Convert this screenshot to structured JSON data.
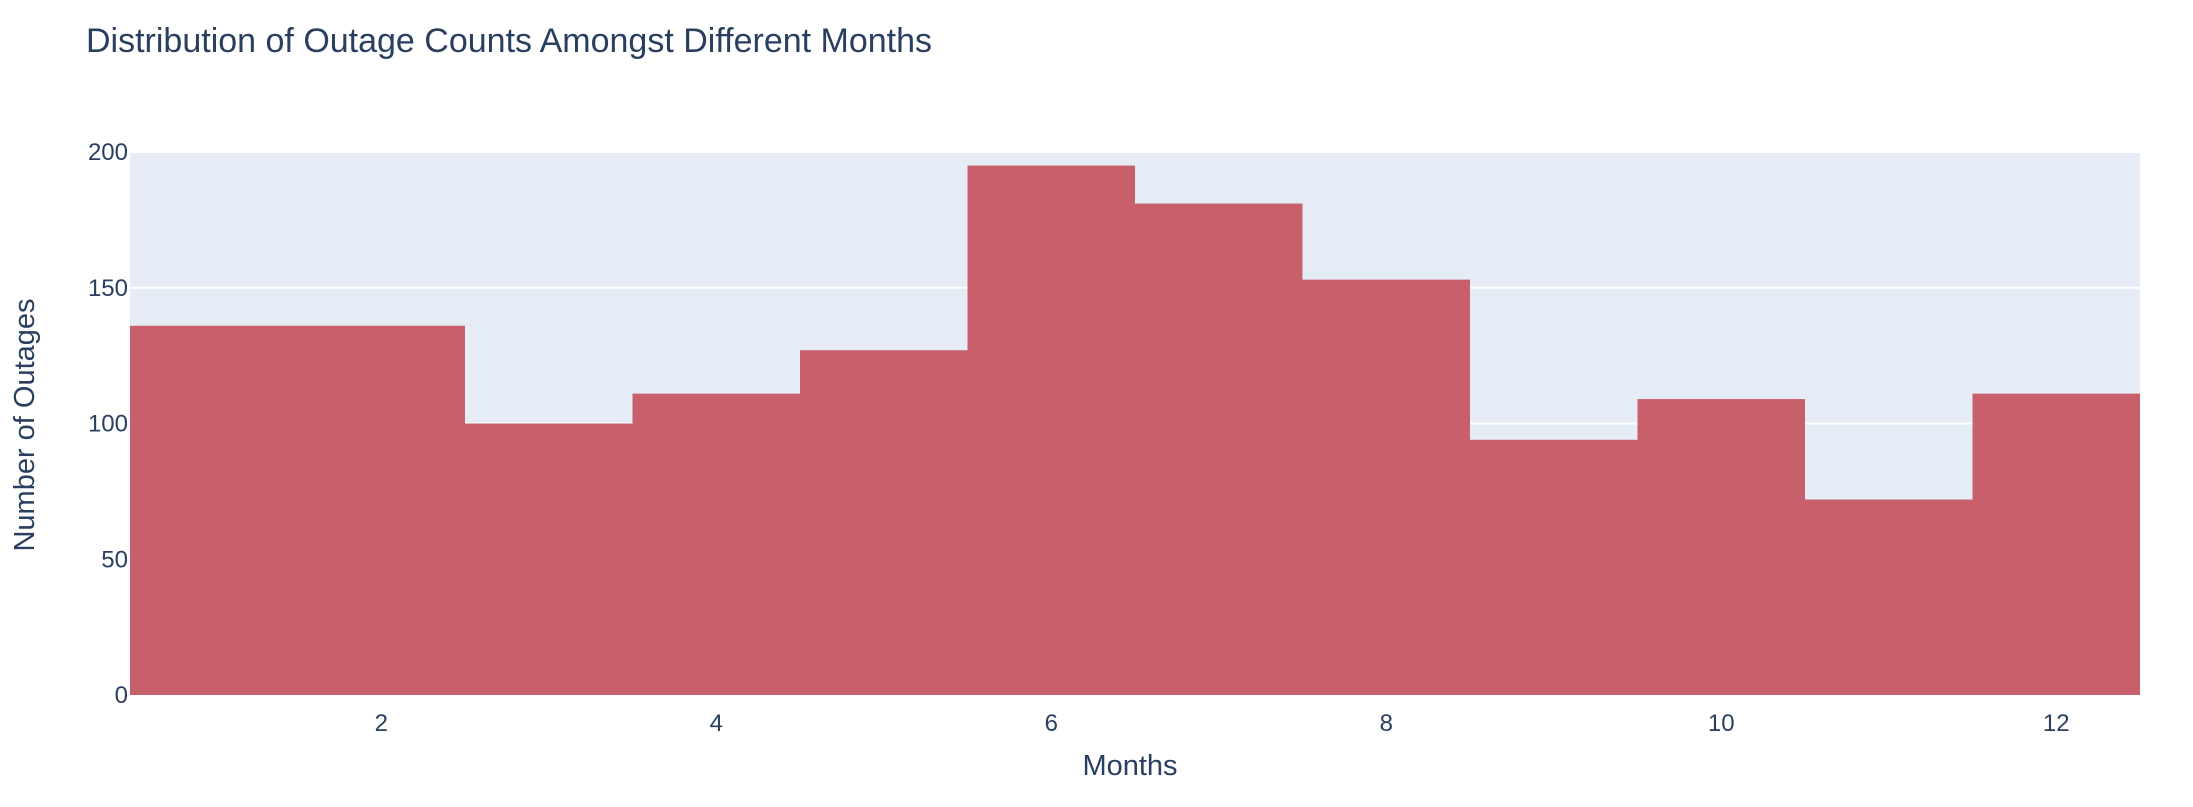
{
  "chart_data": {
    "type": "bar",
    "title": "Distribution of Outage Counts Amongst Different Months",
    "xlabel": "Months",
    "ylabel": "Number of Outages",
    "x": [
      1,
      2,
      3,
      4,
      5,
      6,
      7,
      8,
      9,
      10,
      11,
      12
    ],
    "values": [
      136,
      136,
      100,
      111,
      127,
      195,
      181,
      153,
      94,
      109,
      72,
      111
    ],
    "xlim": [
      0.5,
      12.5
    ],
    "ylim": [
      0,
      200
    ],
    "x_ticks": [
      2,
      4,
      6,
      8,
      10,
      12
    ],
    "y_ticks": [
      0,
      50,
      100,
      150,
      200
    ],
    "grid": true,
    "colors": {
      "bar": "#c8606c",
      "plot_bg": "#e5ecf6",
      "grid": "#ffffff",
      "text": "#2a3f5f"
    }
  }
}
